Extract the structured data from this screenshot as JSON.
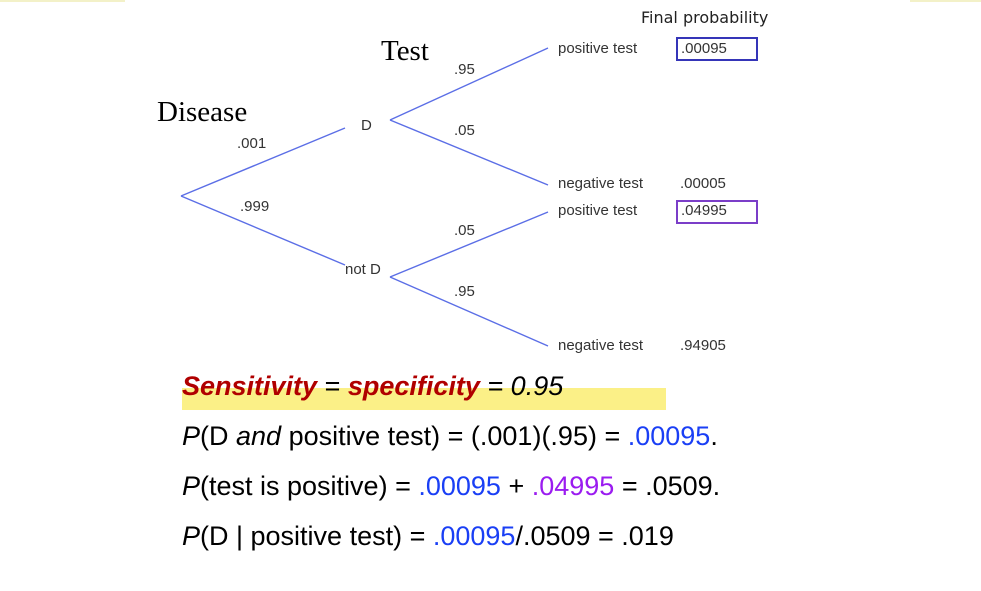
{
  "headers": {
    "disease": "Disease",
    "test": "Test",
    "final": "Final probability"
  },
  "branches": {
    "d_prob": ".001",
    "notd_prob": ".999",
    "d_pos": ".95",
    "d_neg": ".05",
    "notd_pos": ".05",
    "notd_neg": ".95"
  },
  "nodes": {
    "d": "D",
    "notd": "not D"
  },
  "outcomes": [
    {
      "label": "positive test",
      "prob": ".00095",
      "boxed": true,
      "box_color": "#3535b8"
    },
    {
      "label": "negative test",
      "prob": ".00005",
      "boxed": false
    },
    {
      "label": "positive test",
      "prob": ".04995",
      "boxed": true,
      "box_color": "#7b3ec8"
    },
    {
      "label": "negative test",
      "prob": ".94905",
      "boxed": false
    }
  ],
  "equations": {
    "line1": {
      "sens": "Sensitivity",
      "eq1": " = ",
      "spec": "specificity",
      "rest": " = 0.95"
    },
    "line2": {
      "p": "P",
      "a": "(D ",
      "and": "and",
      "b": " positive test) = (.001)(.95) = ",
      "v": ".00095",
      "end": "."
    },
    "line3": {
      "p": "P",
      "a": "(test is positive) = ",
      "v1": ".00095",
      "plus": " + ",
      "v2": ".04995",
      "end": " = .0509."
    },
    "line4": {
      "p": "P",
      "a": "(D | positive test) = ",
      "v": ".00095",
      "end": "/.0509 = .019"
    }
  },
  "colors": {
    "line": "#5b6ee6",
    "highlight": "#fbf087",
    "red": "#b00000",
    "blue": "#1a3ff5",
    "purple": "#9b1cf0"
  }
}
